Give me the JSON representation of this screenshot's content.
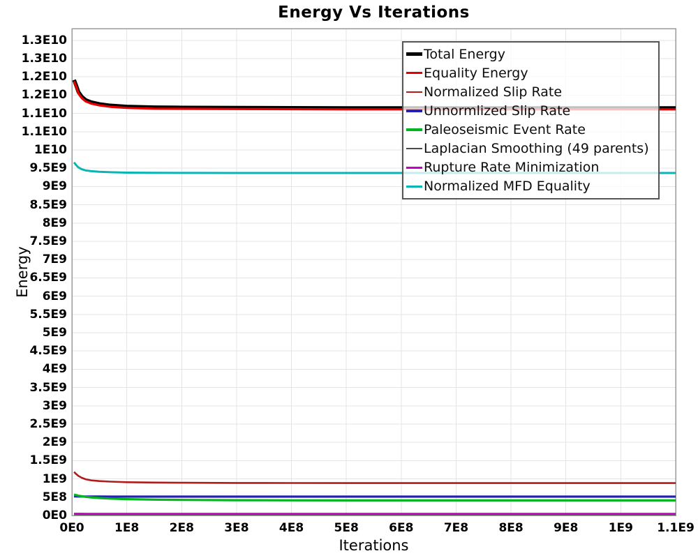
{
  "chart_data": {
    "type": "line",
    "title": "Energy Vs Iterations",
    "xlabel": "Iterations",
    "ylabel": "Energy",
    "xlim": [
      0,
      1100000000.0
    ],
    "ylim": [
      0,
      13320000000.0
    ],
    "grid": true,
    "legend_position": "top-right-inside",
    "legend_background": "rgba(255,255,255,0.76)",
    "grid_color": "#e4e4e4",
    "border_color": "#9a9a9a",
    "x_tick_values": [
      0,
      100000000.0,
      200000000.0,
      300000000.0,
      400000000.0,
      500000000.0,
      600000000.0,
      700000000.0,
      800000000.0,
      900000000.0,
      1000000000.0,
      1100000000.0
    ],
    "x_tick_labels": [
      "0E0",
      "1E8",
      "2E8",
      "3E8",
      "4E8",
      "5E8",
      "6E8",
      "7E8",
      "8E8",
      "9E8",
      "1E9",
      "1.1E9"
    ],
    "y_tick_values": [
      0,
      500000000.0,
      1000000000.0,
      1500000000.0,
      2000000000.0,
      2500000000.0,
      3000000000.0,
      3500000000.0,
      4000000000.0,
      4500000000.0,
      5000000000.0,
      5500000000.0,
      6000000000.0,
      6500000000.0,
      7000000000.0,
      7500000000.0,
      8000000000.0,
      8500000000.0,
      9000000000.0,
      9500000000.0,
      10000000000.0,
      10500000000.0,
      11000000000.0,
      11500000000.0,
      12000000000.0,
      12500000000.0,
      13000000000.0
    ],
    "y_tick_labels": [
      "0E0",
      "5E8",
      "1E9",
      "1.5E9",
      "2E9",
      "2.5E9",
      "3E9",
      "3.5E9",
      "4E9",
      "4.5E9",
      "5E9",
      "5.5E9",
      "6E9",
      "6.5E9",
      "7E9",
      "7.5E9",
      "8E9",
      "8.5E9",
      "9E9",
      "9.5E9",
      "1E10",
      "1.1E10",
      "1.1E10",
      "1.2E10",
      "1.2E10",
      "1.3E10",
      "1.3E10"
    ],
    "x": [
      4000000.0,
      8000000.0,
      12000000.0,
      18000000.0,
      25000000.0,
      35000000.0,
      50000000.0,
      70000000.0,
      100000000.0,
      150000000.0,
      200000000.0,
      300000000.0,
      400000000.0,
      500000000.0,
      600000000.0,
      700000000.0,
      800000000.0,
      900000000.0,
      1000000000.0,
      1100000000.0
    ],
    "series": [
      {
        "name": "Total Energy",
        "color": "#000000",
        "width": 5.5,
        "y": [
          11915000000.0,
          11755000000.0,
          11585000000.0,
          11455000000.0,
          11365000000.0,
          11305000000.0,
          11255000000.0,
          11215000000.0,
          11185000000.0,
          11165000000.0,
          11160000000.0,
          11155000000.0,
          11150000000.0,
          11145000000.0,
          11145000000.0,
          11145000000.0,
          11145000000.0,
          11145000000.0,
          11145000000.0,
          11145000000.0
        ]
      },
      {
        "name": "Equality Energy",
        "color": "#e60000",
        "width": 3.2,
        "y": [
          11880000000.0,
          11720000000.0,
          11550000000.0,
          11420000000.0,
          11330000000.0,
          11270000000.0,
          11220000000.0,
          11180000000.0,
          11150000000.0,
          11130000000.0,
          11125000000.0,
          11120000000.0,
          11115000000.0,
          11110000000.0,
          11110000000.0,
          11110000000.0,
          11110000000.0,
          11110000000.0,
          11110000000.0,
          11110000000.0
        ]
      },
      {
        "name": "Normalized Slip Rate",
        "color": "#b01c1c",
        "width": 2.6,
        "y": [
          1190000000.0,
          1130000000.0,
          1080000000.0,
          1030000000.0,
          990000000.0,
          960000000.0,
          940000000.0,
          925000000.0,
          910000000.0,
          900000000.0,
          895000000.0,
          890000000.0,
          888000000.0,
          886000000.0,
          885000000.0,
          885000000.0,
          885000000.0,
          885000000.0,
          885000000.0,
          885000000.0
        ]
      },
      {
        "name": "Unnormlized Slip Rate",
        "color": "#2222b2",
        "width": 3.2,
        "y": [
          523000000.0,
          521000000.0,
          520000000.0,
          519000000.0,
          518000000.0,
          517000000.0,
          517000000.0,
          516000000.0,
          516000000.0,
          515000000.0,
          515000000.0,
          515000000.0,
          515000000.0,
          515000000.0,
          515000000.0,
          515000000.0,
          515000000.0,
          515000000.0,
          515000000.0,
          515000000.0
        ]
      },
      {
        "name": "Paleoseismic Event Rate",
        "color": "#00b520",
        "width": 3.2,
        "y": [
          572000000.0,
          555000000.0,
          540000000.0,
          525000000.0,
          510000000.0,
          495000000.0,
          478000000.0,
          462000000.0,
          447000000.0,
          433000000.0,
          425000000.0,
          418000000.0,
          415000000.0,
          413000000.0,
          412000000.0,
          412000000.0,
          412000000.0,
          412000000.0,
          412000000.0,
          412000000.0
        ]
      },
      {
        "name": "Laplacian Smoothing (49 parents)",
        "color": "#4a4a4a",
        "width": 2.4,
        "y": [
          32000000.0,
          31000000.0,
          31000000.0,
          30000000.0,
          30000000.0,
          30000000.0,
          30000000.0,
          30000000.0,
          30000000.0,
          30000000.0,
          30000000.0,
          30000000.0,
          30000000.0,
          30000000.0,
          30000000.0,
          30000000.0,
          30000000.0,
          30000000.0,
          30000000.0,
          30000000.0
        ]
      },
      {
        "name": "Rupture Rate Minimization",
        "color": "#c400c4",
        "width": 2.6,
        "y": [
          50000000.0,
          50000000.0,
          49000000.0,
          49000000.0,
          48000000.0,
          48000000.0,
          47000000.0,
          47000000.0,
          46000000.0,
          46000000.0,
          46000000.0,
          46000000.0,
          46000000.0,
          46000000.0,
          46000000.0,
          46000000.0,
          46000000.0,
          46000000.0,
          46000000.0,
          46000000.0
        ]
      },
      {
        "name": "Normalized MFD Equality",
        "color": "#0ab4b4",
        "width": 3.0,
        "y": [
          9660000000.0,
          9580000000.0,
          9520000000.0,
          9470000000.0,
          9440000000.0,
          9420000000.0,
          9405000000.0,
          9390000000.0,
          9380000000.0,
          9375000000.0,
          9372000000.0,
          9370000000.0,
          9370000000.0,
          9370000000.0,
          9370000000.0,
          9370000000.0,
          9370000000.0,
          9370000000.0,
          9370000000.0,
          9370000000.0
        ]
      }
    ]
  }
}
